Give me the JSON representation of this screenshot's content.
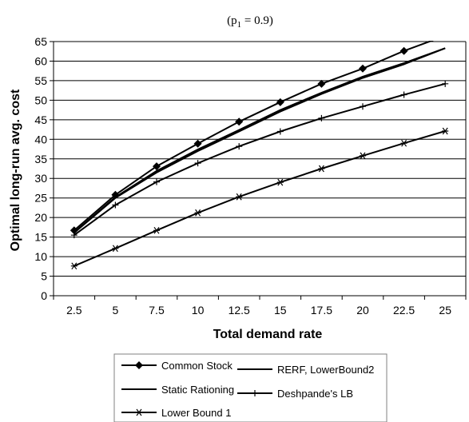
{
  "chart_data": {
    "type": "line",
    "title": "",
    "subtitle_main": "(p",
    "subtitle_sub": "1",
    "subtitle_rest": " = 0.9)",
    "xlabel": "Total demand rate",
    "ylabel": "Optimal long-run avg. cost",
    "categories": [
      "2.5",
      "5",
      "7.5",
      "10",
      "12.5",
      "15",
      "17.5",
      "20",
      "22.5",
      "25"
    ],
    "ylim": [
      0,
      65
    ],
    "yticks": [
      "0",
      "5",
      "10",
      "15",
      "20",
      "25",
      "30",
      "35",
      "40",
      "45",
      "50",
      "55",
      "60",
      "65"
    ],
    "grid": "horizontal",
    "legend_position": "bottom",
    "series": [
      {
        "name": "Common Stock",
        "marker": "diamond",
        "values": [
          16.7,
          25.8,
          33.1,
          38.9,
          44.5,
          49.5,
          54.2,
          58.1,
          62.6,
          66.5
        ]
      },
      {
        "name": "RERF, LowerBound2",
        "marker": "none",
        "values": [
          16.1,
          25.0,
          31.5,
          37.0,
          42.0,
          47.1,
          51.6,
          55.7,
          59.2,
          63.3
        ]
      },
      {
        "name": "Static Rationing",
        "marker": "none",
        "values": [
          16.2,
          25.2,
          31.9,
          37.4,
          42.4,
          47.5,
          51.9,
          56.0,
          59.5,
          63.3
        ]
      },
      {
        "name": "Deshpande's LB",
        "marker": "plus",
        "values": [
          15.5,
          23.2,
          29.1,
          33.9,
          38.2,
          42.0,
          45.4,
          48.4,
          51.4,
          54.2
        ]
      },
      {
        "name": "Lower Bound 1",
        "marker": "star",
        "values": [
          7.6,
          12.1,
          16.7,
          21.2,
          25.3,
          29.0,
          32.5,
          35.8,
          39.0,
          42.1
        ]
      }
    ],
    "colors": {
      "line": "#000000",
      "grid": "#000000",
      "frame": "#808080"
    }
  }
}
